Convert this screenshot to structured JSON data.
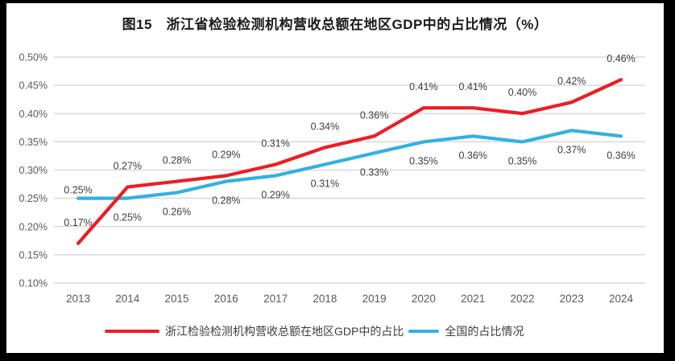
{
  "figure": {
    "title": "图15　浙江省检验检测机构营收总额在地区GDP中的占比情况（%）"
  },
  "colors": {
    "zhejiang_line": "#ed1c24",
    "national_line": "#31b1e3",
    "gridline": "#d9d9d9",
    "axis_text": "#595959",
    "data_label_text": "#3d3d3d",
    "frame": "#000000",
    "background": "#ffffff",
    "title_text": "#1a1a1a"
  },
  "chart_data": {
    "type": "line",
    "title": "图15　浙江省检验检测机构营收总额在地区GDP中的占比情况（%）",
    "categories": [
      "2013",
      "2014",
      "2015",
      "2016",
      "2017",
      "2018",
      "2019",
      "2020",
      "2021",
      "2022",
      "2023",
      "2024"
    ],
    "series": [
      {
        "name": "浙江检验检测机构营收总额在地区GDP中的占比",
        "color": "#ed1c24",
        "values": [
          0.17,
          0.27,
          0.28,
          0.29,
          0.31,
          0.34,
          0.36,
          0.41,
          0.41,
          0.4,
          0.42,
          0.46
        ],
        "labels": [
          "0.17%",
          "0.27%",
          "0.28%",
          "0.29%",
          "0.31%",
          "0.34%",
          "0.36%",
          "0.41%",
          "0.41%",
          "0.40%",
          "0.42%",
          "0.46%"
        ]
      },
      {
        "name": "全国的占比情况",
        "color": "#31b1e3",
        "values": [
          0.25,
          0.25,
          0.26,
          0.28,
          0.29,
          0.31,
          0.33,
          0.35,
          0.36,
          0.35,
          0.37,
          0.36
        ],
        "labels": [
          "0.25%",
          "0.25%",
          "0.26%",
          "0.28%",
          "0.29%",
          "0.31%",
          "0.33%",
          "0.35%",
          "0.36%",
          "0.35%",
          "0.37%",
          "0.36%"
        ]
      }
    ],
    "xlabel": "",
    "ylabel": "",
    "ylim": [
      0.1,
      0.5
    ],
    "ytick_step": 0.05,
    "ytick_labels": [
      "0.50%",
      "0.45%",
      "0.40%",
      "0.35%",
      "0.30%",
      "0.25%",
      "0.20%",
      "0.15%",
      "0.10%"
    ],
    "grid": true,
    "legend_position": "bottom"
  }
}
